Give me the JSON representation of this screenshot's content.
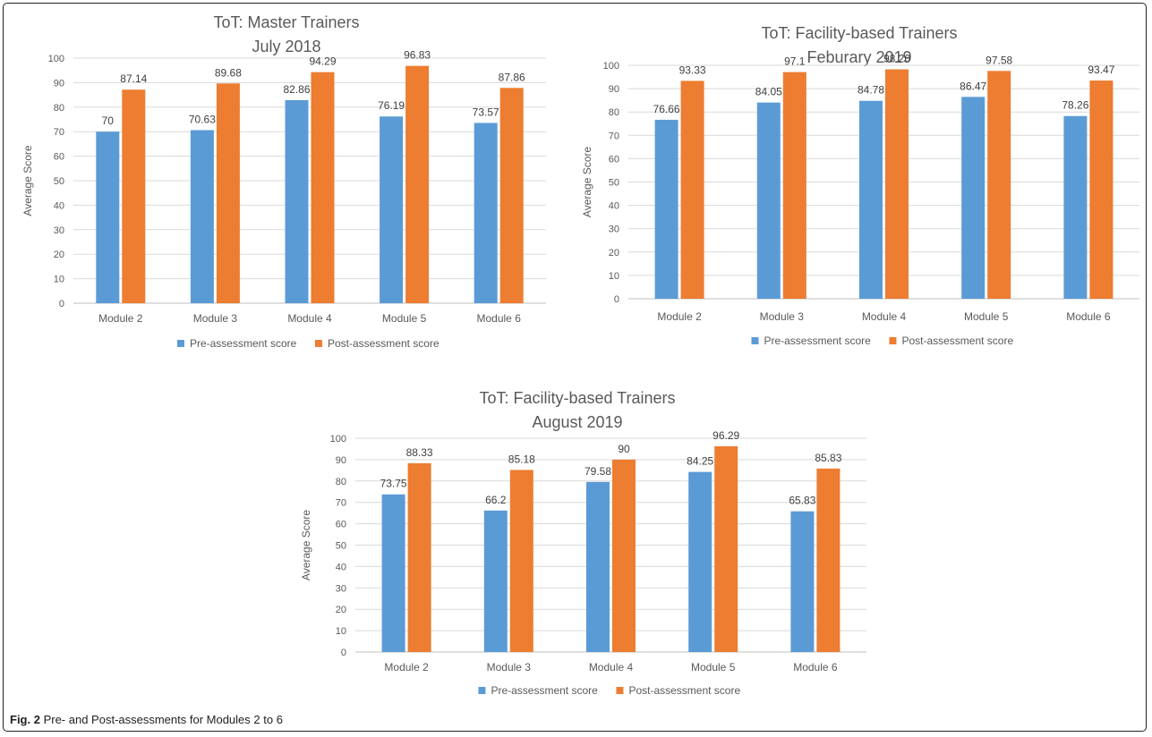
{
  "caption": {
    "label": "Fig. 2",
    "text": "Pre- and Post-assessments for Modules 2 to 6"
  },
  "chart_data": [
    {
      "type": "bar",
      "title": [
        "ToT: Master Trainers",
        "July 2018"
      ],
      "categories": [
        "Module 2",
        "Module 3",
        "Module 4",
        "Module 5",
        "Module 6"
      ],
      "series": [
        {
          "name": "Pre-assessment score",
          "color": "#5b9bd5",
          "values": [
            70,
            70.63,
            82.86,
            76.19,
            73.57
          ]
        },
        {
          "name": "Post-assessment score",
          "color": "#ed7d31",
          "values": [
            87.14,
            89.68,
            94.29,
            96.83,
            87.86
          ]
        }
      ],
      "ylabel": "Average Score",
      "ylim": [
        0,
        100
      ],
      "yticks": [
        0,
        10,
        20,
        30,
        40,
        50,
        60,
        70,
        80,
        90,
        100
      ],
      "grid": true,
      "legend": "bottom"
    },
    {
      "type": "bar",
      "title": [
        "ToT: Facility-based Trainers",
        "Feburary 2019"
      ],
      "categories": [
        "Module 2",
        "Module 3",
        "Module 4",
        "Module 5",
        "Module 6"
      ],
      "series": [
        {
          "name": "Pre-assessment score",
          "color": "#5b9bd5",
          "values": [
            76.66,
            84.05,
            84.78,
            86.47,
            78.26
          ]
        },
        {
          "name": "Post-assessment score",
          "color": "#ed7d31",
          "values": [
            93.33,
            97.1,
            98.26,
            97.58,
            93.47
          ]
        }
      ],
      "ylabel": "Average Score",
      "ylim": [
        0,
        100
      ],
      "yticks": [
        0,
        10,
        20,
        30,
        40,
        50,
        60,
        70,
        80,
        90,
        100
      ],
      "grid": true,
      "legend": "bottom"
    },
    {
      "type": "bar",
      "title": [
        "ToT: Facility-based Trainers",
        "August 2019"
      ],
      "categories": [
        "Module 2",
        "Module 3",
        "Module 4",
        "Module 5",
        "Module 6"
      ],
      "series": [
        {
          "name": "Pre-assessment score",
          "color": "#5b9bd5",
          "values": [
            73.75,
            66.2,
            79.58,
            84.25,
            65.83
          ]
        },
        {
          "name": "Post-assessment score",
          "color": "#ed7d31",
          "values": [
            88.33,
            85.18,
            90,
            96.29,
            85.83
          ]
        }
      ],
      "ylabel": "Average Score",
      "ylim": [
        0,
        100
      ],
      "yticks": [
        0,
        10,
        20,
        30,
        40,
        50,
        60,
        70,
        80,
        90,
        100
      ],
      "grid": true,
      "legend": "bottom"
    }
  ]
}
